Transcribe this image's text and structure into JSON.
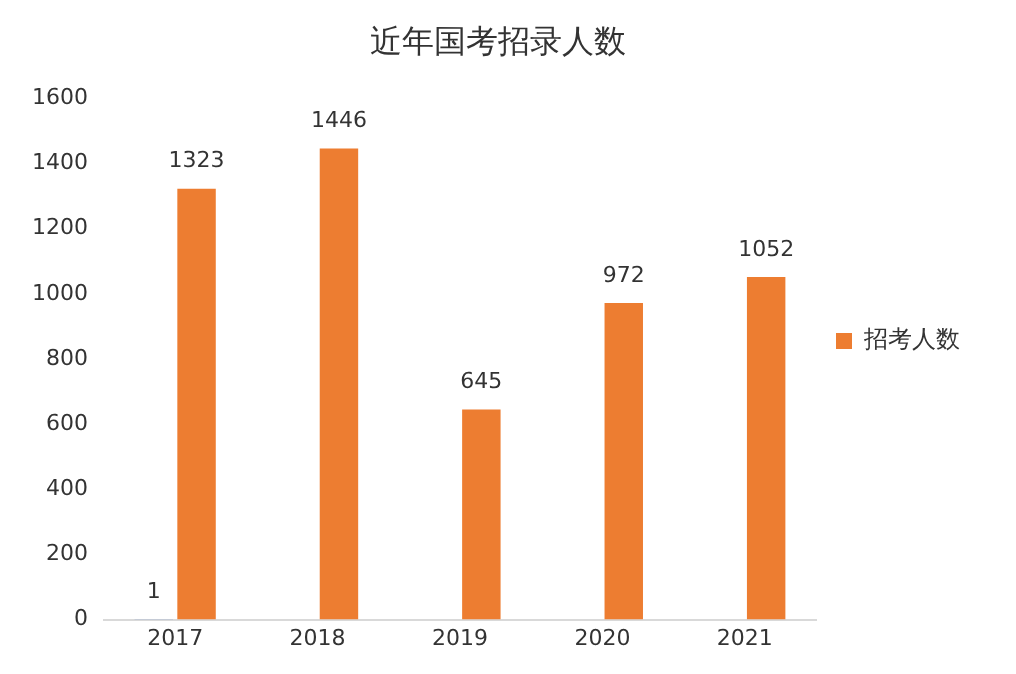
{
  "chart_data": {
    "type": "bar",
    "title": "近年国考招录人数",
    "categories": [
      "2017",
      "2018",
      "2019",
      "2020",
      "2021"
    ],
    "series": [
      {
        "color": "#4472c4",
        "values": [
          1,
          null,
          null,
          null,
          null
        ]
      },
      {
        "name": "招考人数",
        "color": "#ed7d31",
        "values": [
          1323,
          1446,
          645,
          972,
          1052
        ]
      }
    ],
    "ylim": [
      0,
      1600
    ],
    "yticks": [
      0,
      200,
      400,
      600,
      800,
      1000,
      1200,
      1400,
      1600
    ],
    "grid": false,
    "legend": "right",
    "data_labels": true
  }
}
